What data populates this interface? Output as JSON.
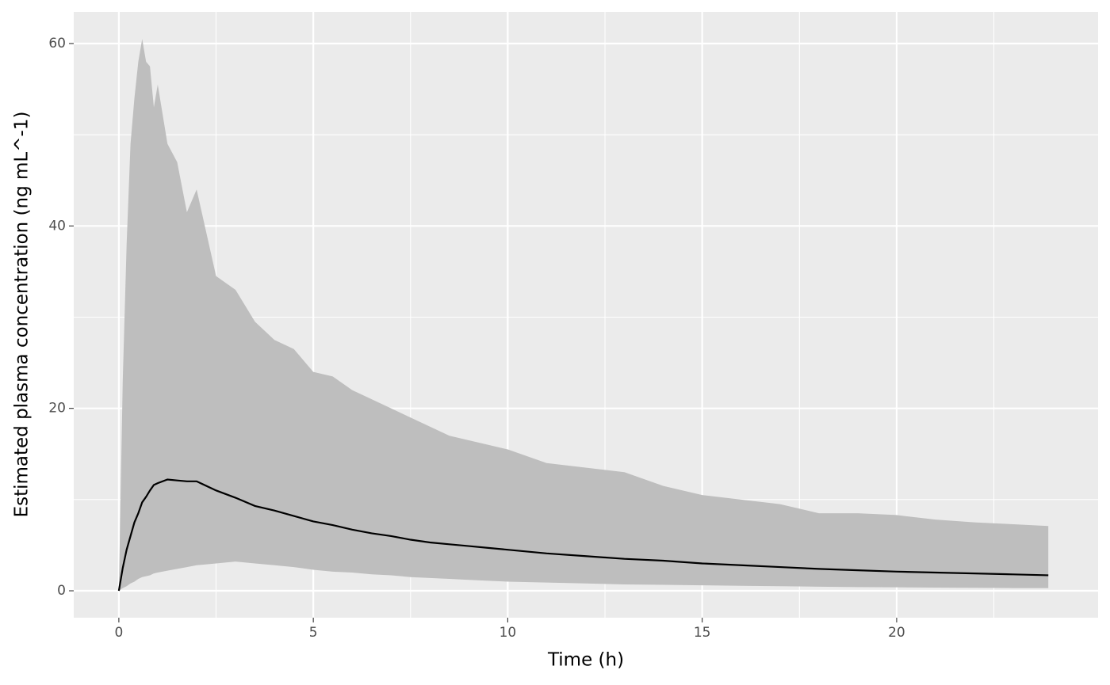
{
  "chart_data": {
    "type": "ribbon_line",
    "x_label": "Time (h)",
    "y_label": "Estimated plasma concentration (ng mL^-1)",
    "x": [
      0,
      0.1,
      0.2,
      0.3,
      0.4,
      0.5,
      0.6,
      0.7,
      0.8,
      0.9,
      1.0,
      1.25,
      1.5,
      1.75,
      2,
      2.5,
      3,
      3.5,
      4,
      4.5,
      5,
      5.5,
      6,
      6.5,
      7,
      7.5,
      8,
      8.5,
      9,
      9.5,
      10,
      11,
      12,
      13,
      14,
      15,
      16,
      17,
      18,
      19,
      20,
      21,
      22,
      23,
      23.9
    ],
    "values": [
      0,
      2.5,
      4.5,
      6,
      7.5,
      8.5,
      9.7,
      10.3,
      11,
      11.6,
      11.8,
      12.2,
      12.1,
      12,
      12,
      11,
      10.2,
      9.3,
      8.8,
      8.2,
      7.6,
      7.2,
      6.7,
      6.3,
      6,
      5.6,
      5.3,
      5.1,
      4.9,
      4.7,
      4.5,
      4.1,
      3.8,
      3.5,
      3.3,
      3.0,
      2.8,
      2.6,
      2.4,
      2.25,
      2.1,
      2.0,
      1.9,
      1.8,
      1.7
    ],
    "band_upper": [
      0,
      23,
      38,
      49,
      54,
      58,
      60.5,
      58,
      57.5,
      53,
      55.5,
      49,
      47,
      41.5,
      44,
      34.5,
      33,
      29.5,
      27.5,
      26.5,
      24,
      23.5,
      22,
      21,
      20,
      19,
      18,
      17,
      16.5,
      16,
      15.5,
      14,
      13.5,
      13,
      11.5,
      10.5,
      10,
      9.5,
      8.5,
      8.5,
      8.3,
      7.8,
      7.5,
      7.3,
      7.1
    ],
    "band_lower": [
      0,
      0.3,
      0.5,
      0.8,
      1,
      1.3,
      1.5,
      1.6,
      1.7,
      1.9,
      2,
      2.2,
      2.4,
      2.6,
      2.8,
      3,
      3.2,
      3,
      2.8,
      2.6,
      2.3,
      2.1,
      2.0,
      1.8,
      1.7,
      1.5,
      1.4,
      1.3,
      1.2,
      1.1,
      1.0,
      0.9,
      0.8,
      0.7,
      0.65,
      0.6,
      0.55,
      0.5,
      0.45,
      0.4,
      0.38,
      0.35,
      0.33,
      0.3,
      0.3
    ],
    "color": "#000000",
    "band_color": "#bebebe",
    "xlim": [
      -1.16,
      25.18
    ],
    "ylim": [
      -2.95,
      63.47
    ],
    "xticks": [
      0,
      5,
      10,
      15,
      20
    ],
    "yticks": [
      0,
      20,
      40,
      60
    ],
    "x_minor_ticks": [
      2.5,
      7.5,
      12.5,
      17.5,
      22.5
    ],
    "y_minor_ticks": [
      10,
      30,
      50
    ],
    "grid": true
  }
}
